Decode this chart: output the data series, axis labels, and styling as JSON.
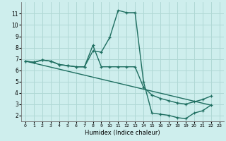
{
  "xlabel": "Humidex (Indice chaleur)",
  "xlim": [
    -0.5,
    23.5
  ],
  "ylim": [
    1.5,
    12.0
  ],
  "yticks": [
    2,
    3,
    4,
    5,
    6,
    7,
    8,
    9,
    10,
    11
  ],
  "xticks": [
    0,
    1,
    2,
    3,
    4,
    5,
    6,
    7,
    8,
    9,
    10,
    11,
    12,
    13,
    14,
    15,
    16,
    17,
    18,
    19,
    20,
    21,
    22,
    23
  ],
  "bg_color": "#ceeeed",
  "grid_color": "#b0d8d5",
  "line_color": "#1e6e60",
  "line1_x": [
    0,
    1,
    2,
    3,
    4,
    5,
    6,
    7,
    8,
    9,
    10,
    11,
    12,
    13,
    14,
    15,
    16,
    17,
    18,
    19,
    20,
    21,
    22
  ],
  "line1_y": [
    6.8,
    6.7,
    6.9,
    6.8,
    6.5,
    6.4,
    6.3,
    6.3,
    7.7,
    7.6,
    8.9,
    11.3,
    11.1,
    11.1,
    5.0,
    2.2,
    2.1,
    2.0,
    1.8,
    1.7,
    2.2,
    2.4,
    2.9
  ],
  "line2_x": [
    0,
    1,
    2,
    3,
    4,
    5,
    6,
    7,
    8,
    9,
    10,
    11,
    12,
    13,
    14,
    15,
    16,
    17,
    18,
    19,
    20,
    21,
    22
  ],
  "line2_y": [
    6.8,
    6.7,
    6.9,
    6.8,
    6.5,
    6.4,
    6.3,
    6.3,
    8.2,
    6.3,
    6.3,
    6.3,
    6.3,
    6.3,
    4.5,
    3.8,
    3.5,
    3.3,
    3.1,
    3.0,
    3.2,
    3.4,
    3.7
  ],
  "line3_x": [
    0,
    22
  ],
  "line3_y": [
    6.8,
    2.9
  ]
}
